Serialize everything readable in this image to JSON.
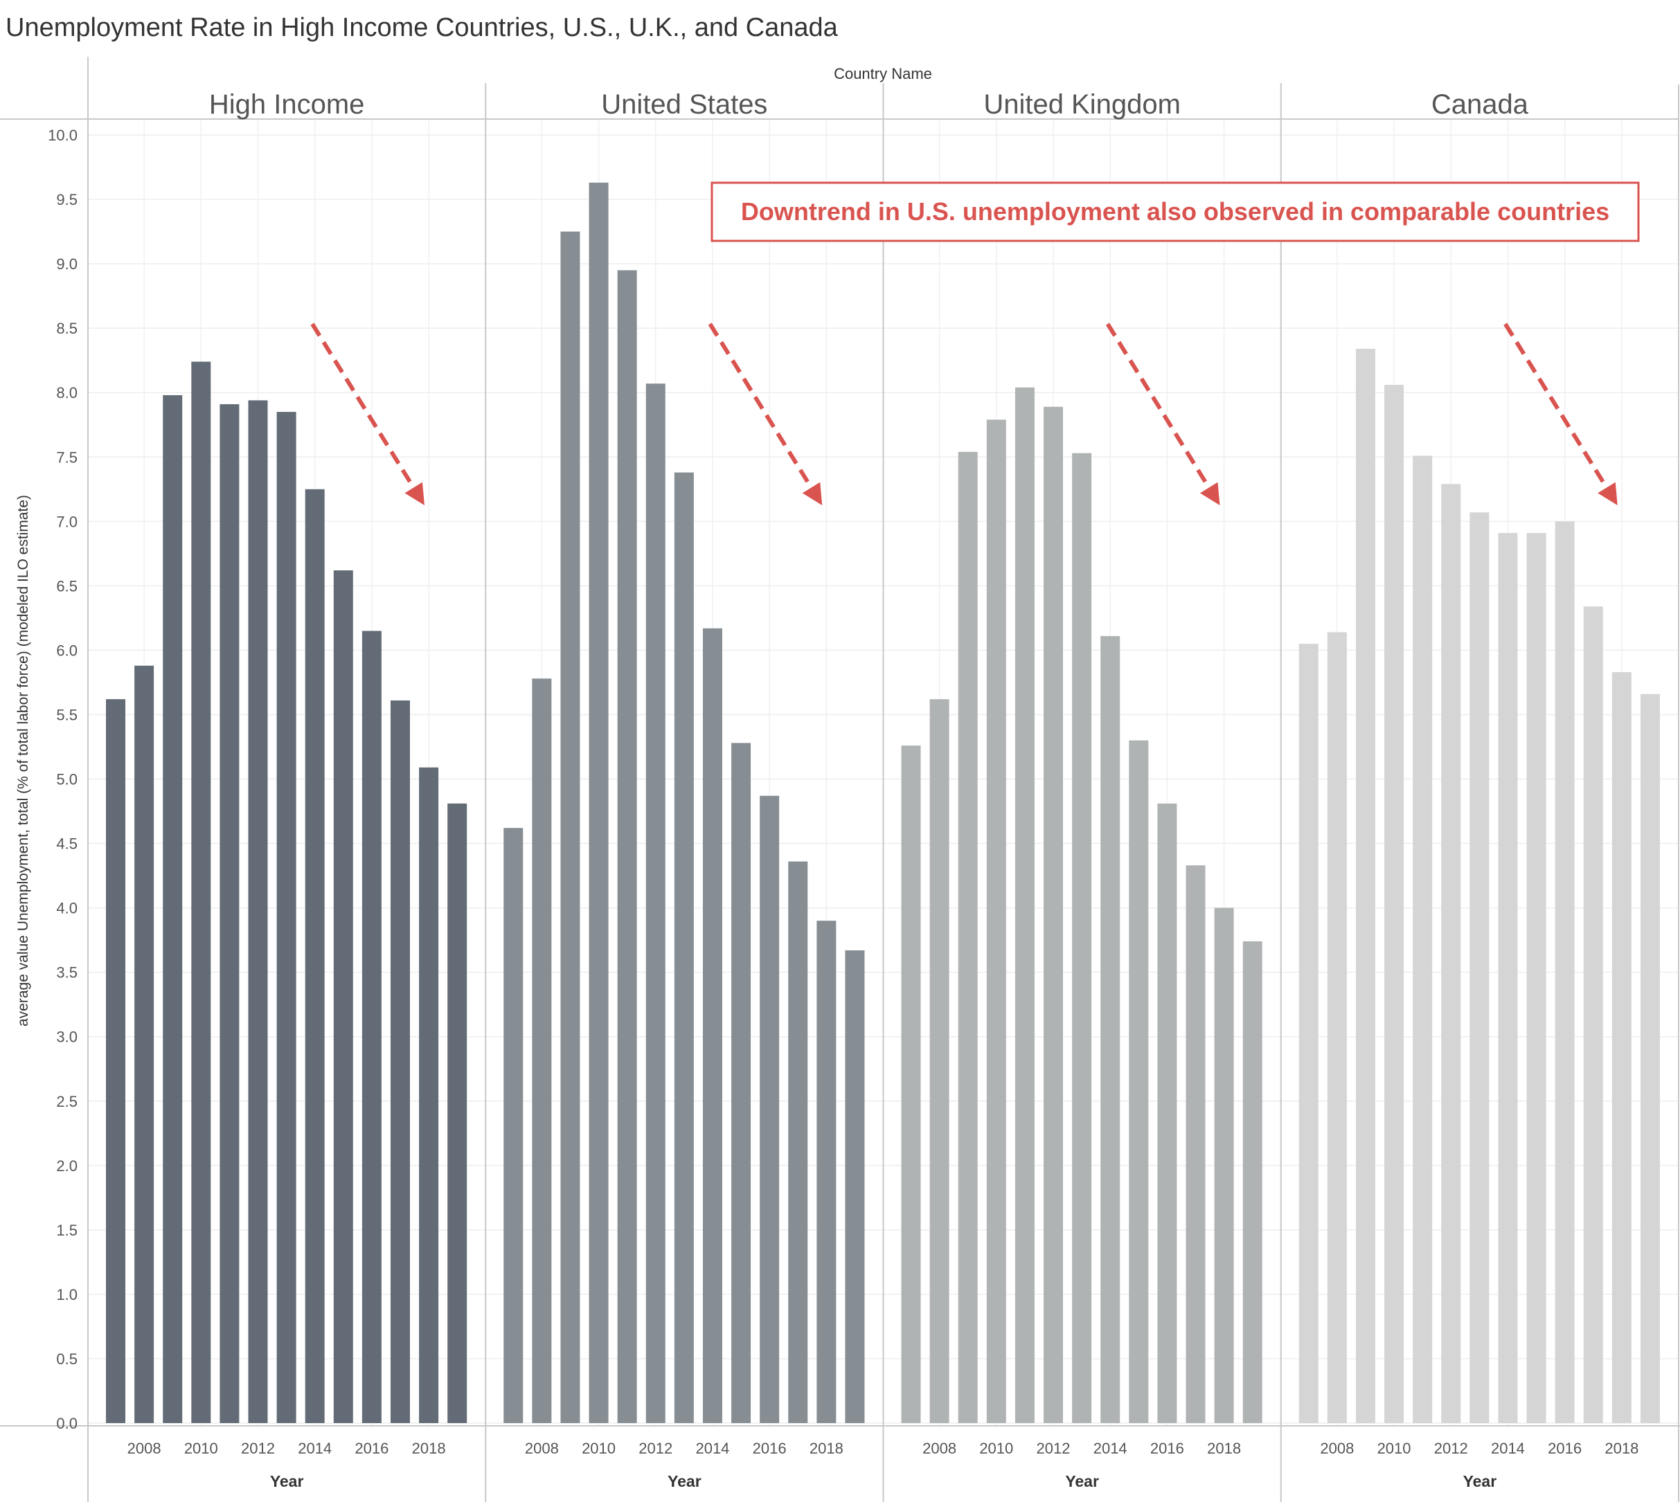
{
  "chart_data": {
    "type": "bar",
    "title": "Unemployment Rate in High Income Countries, U.S., U.K., and Canada",
    "facet_header": "Country Name",
    "xlabel": "Year",
    "ylabel": "average value Unemployment, total (% of total labor force) (modeled ILO estimate)",
    "ylim": [
      0,
      10
    ],
    "yticks": [
      "0.0",
      "0.5",
      "1.0",
      "1.5",
      "2.0",
      "2.5",
      "3.0",
      "3.5",
      "4.0",
      "4.5",
      "5.0",
      "5.5",
      "6.0",
      "6.5",
      "7.0",
      "7.5",
      "8.0",
      "8.5",
      "9.0",
      "9.5",
      "10.0"
    ],
    "years": [
      2007,
      2008,
      2009,
      2010,
      2011,
      2012,
      2013,
      2014,
      2015,
      2016,
      2017,
      2018,
      2019
    ],
    "xtick_labels": [
      "2008",
      "2010",
      "2012",
      "2014",
      "2016",
      "2018"
    ],
    "grid": true,
    "legend": "none",
    "annotation": "Downtrend in U.S. unemployment also observed in comparable countries",
    "annotation_color": "#d9534f",
    "panels": [
      {
        "name": "High Income",
        "color": "#636c76",
        "values": [
          5.62,
          5.88,
          7.98,
          8.24,
          7.91,
          7.94,
          7.85,
          7.25,
          6.62,
          6.15,
          5.61,
          5.09,
          4.81
        ]
      },
      {
        "name": "United States",
        "color": "#868e94",
        "values": [
          4.62,
          5.78,
          9.25,
          9.63,
          8.95,
          8.07,
          7.38,
          6.17,
          5.28,
          4.87,
          4.36,
          3.9,
          3.67
        ]
      },
      {
        "name": "United Kingdom",
        "color": "#b0b3b4",
        "values": [
          5.26,
          5.62,
          7.54,
          7.79,
          8.04,
          7.89,
          7.53,
          6.11,
          5.3,
          4.81,
          4.33,
          4.0,
          3.74
        ]
      },
      {
        "name": "Canada",
        "color": "#d5d5d5",
        "values": [
          6.05,
          6.14,
          8.34,
          8.06,
          7.51,
          7.29,
          7.07,
          6.91,
          6.91,
          7.0,
          6.34,
          5.83,
          5.66
        ]
      }
    ]
  }
}
